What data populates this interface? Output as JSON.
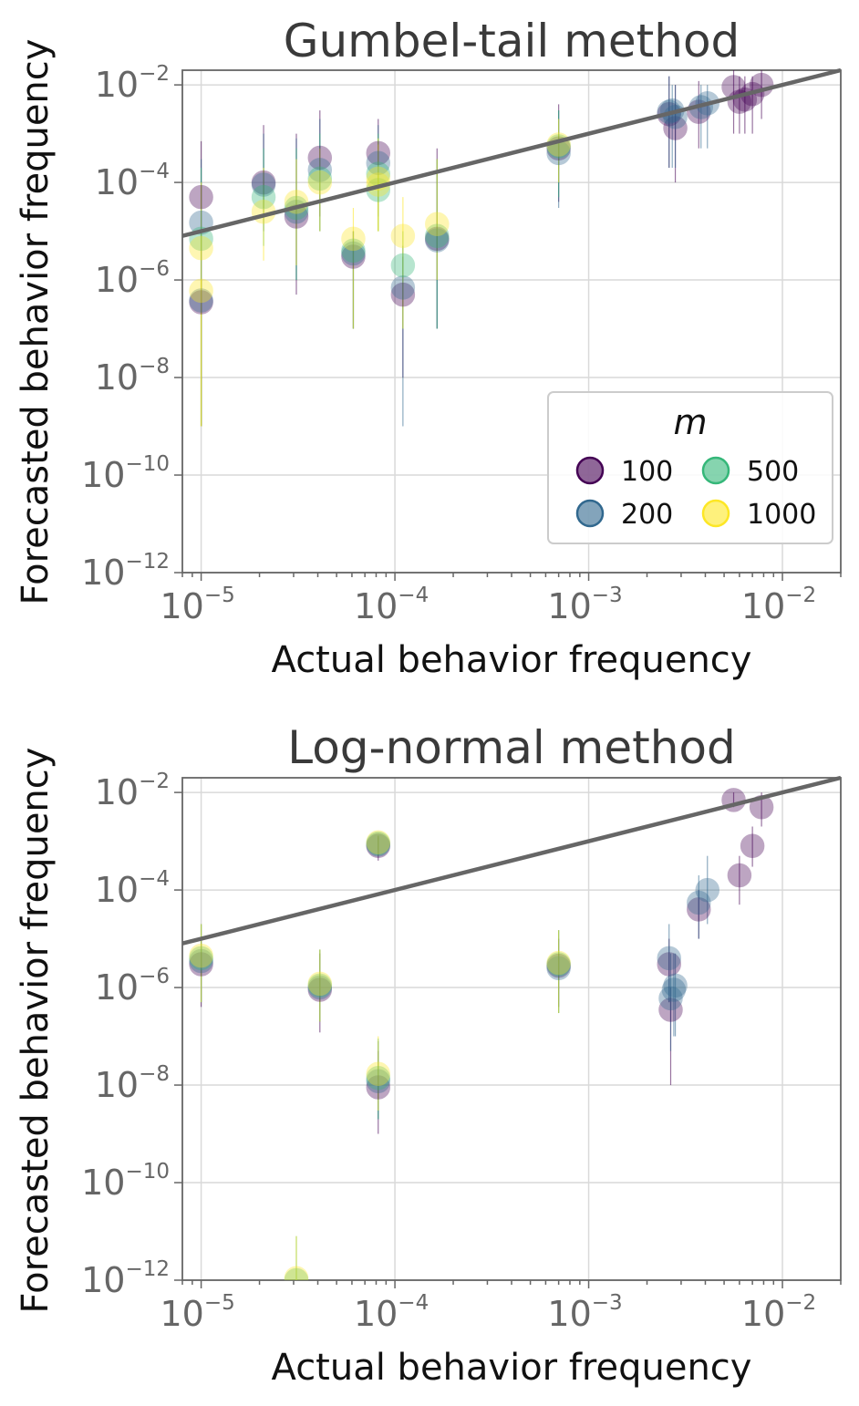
{
  "colors": {
    "m100": "#440154",
    "m200": "#31688e",
    "m500": "#35b779",
    "m1000": "#fde725",
    "reference_line": "#666666",
    "grid": "#d9d9d9"
  },
  "legend": {
    "title": "m",
    "entries": [
      {
        "label": "100",
        "series": "m100"
      },
      {
        "label": "500",
        "series": "m500"
      },
      {
        "label": "200",
        "series": "m200"
      },
      {
        "label": "1000",
        "series": "m1000"
      }
    ]
  },
  "chart_data": [
    {
      "type": "scatter",
      "title": "Gumbel-tail method",
      "xlabel": "Actual behavior frequency",
      "ylabel": "Forecasted behavior frequency",
      "xscale": "log",
      "yscale": "log",
      "xlim": [
        8e-06,
        0.02
      ],
      "ylim": [
        1e-12,
        0.02
      ],
      "x_ticks": [
        {
          "base": "10",
          "exp": "−5",
          "value": -5
        },
        {
          "base": "10",
          "exp": "−4",
          "value": -4
        },
        {
          "base": "10",
          "exp": "−3",
          "value": -3
        },
        {
          "base": "10",
          "exp": "−2",
          "value": -2
        }
      ],
      "y_ticks": [
        {
          "base": "10",
          "exp": "−2",
          "value": -2
        },
        {
          "base": "10",
          "exp": "−4",
          "value": -4
        },
        {
          "base": "10",
          "exp": "−6",
          "value": -6
        },
        {
          "base": "10",
          "exp": "−8",
          "value": -8
        },
        {
          "base": "10",
          "exp": "−10",
          "value": -10
        },
        {
          "base": "10",
          "exp": "−12",
          "value": -12
        }
      ],
      "reference_line": "y = x",
      "legend_location": "lower-right",
      "grid": true,
      "series": [
        {
          "name": "100",
          "points": [
            [
              1e-05,
              5e-05,
              0.0007,
              1e-09
            ],
            [
              1e-05,
              3.5e-07,
              1e-06,
              1e-09
            ],
            [
              2.1e-05,
              0.0001,
              0.0015,
              3e-05
            ],
            [
              3.1e-05,
              2e-05,
              0.001,
              5e-07
            ],
            [
              4.1e-05,
              0.00032,
              0.003,
              2e-05
            ],
            [
              6.1e-05,
              3e-06,
              1e-05,
              1e-07
            ],
            [
              8.2e-05,
              0.0004,
              0.002,
              5e-05
            ],
            [
              0.00011,
              5e-07,
              3e-06,
              1e-08
            ],
            [
              0.000165,
              7e-06,
              0.0005,
              1e-07
            ],
            [
              0.0007,
              0.0005,
              0.004,
              4e-05
            ],
            [
              0.0026,
              0.0025,
              0.015,
              0.0002
            ],
            [
              0.0028,
              0.0013,
              0.01,
              0.0001
            ],
            [
              0.0037,
              0.0028,
              0.012,
              0.0005
            ],
            [
              0.0056,
              0.009,
              0.02,
              0.001
            ],
            [
              0.006,
              0.0045,
              0.015,
              0.001
            ],
            [
              0.0064,
              0.005,
              0.015,
              0.001
            ],
            [
              0.007,
              0.0065,
              0.015,
              0.001
            ],
            [
              0.0078,
              0.01,
              0.02,
              0.002
            ]
          ]
        },
        {
          "name": "200",
          "points": [
            [
              1e-05,
              1.5e-05,
              0.0003,
              1e-09
            ],
            [
              1e-05,
              3.8e-07,
              1e-06,
              1e-09
            ],
            [
              2.1e-05,
              9e-05,
              0.001,
              1e-05
            ],
            [
              3.1e-05,
              2.5e-05,
              0.0008,
              1e-06
            ],
            [
              4.1e-05,
              0.00018,
              0.002,
              1e-05
            ],
            [
              6.1e-05,
              3.5e-06,
              1e-05,
              1e-07
            ],
            [
              8.2e-05,
              0.00025,
              0.0015,
              2e-05
            ],
            [
              0.00011,
              7e-07,
              5e-06,
              1e-09
            ],
            [
              0.000165,
              6.5e-06,
              0.0003,
              1e-07
            ],
            [
              0.0007,
              0.0004,
              0.003,
              3e-05
            ],
            [
              0.0026,
              0.0028,
              0.015,
              0.0002
            ],
            [
              0.0027,
              0.003,
              0.01,
              0.0002
            ],
            [
              0.0028,
              0.0022,
              0.01,
              0.0002
            ],
            [
              0.0038,
              0.0035,
              0.01,
              0.0005
            ],
            [
              0.0041,
              0.0042,
              0.01,
              0.0005
            ]
          ]
        },
        {
          "name": "500",
          "points": [
            [
              1e-05,
              7e-06,
              0.0002,
              1e-09
            ],
            [
              2.1e-05,
              5e-05,
              0.0005,
              5e-06
            ],
            [
              3.1e-05,
              3e-05,
              0.0005,
              1e-06
            ],
            [
              4.1e-05,
              0.00012,
              0.001,
              1e-05
            ],
            [
              6.1e-05,
              4e-06,
              1e-05,
              1e-07
            ],
            [
              8.2e-05,
              0.00015,
              0.001,
              1e-05
            ],
            [
              8.2e-05,
              7e-05,
              0.0008,
              1e-05
            ],
            [
              0.00011,
              2e-06,
              1e-05,
              1e-07
            ],
            [
              0.000165,
              8e-06,
              0.0003,
              1e-07
            ],
            [
              0.0007,
              0.00055,
              0.003,
              5e-05
            ]
          ]
        },
        {
          "name": "1000",
          "points": [
            [
              1e-05,
              4.5e-06,
              0.0001,
              1e-09
            ],
            [
              1e-05,
              6e-07,
              1e-06,
              1e-09
            ],
            [
              2.1e-05,
              2.5e-05,
              0.0002,
              2.5e-06
            ],
            [
              3.1e-05,
              4e-05,
              0.0003,
              2e-06
            ],
            [
              4.1e-05,
              0.0001,
              0.0005,
              1e-05
            ],
            [
              6.1e-05,
              7e-06,
              3e-05,
              1e-07
            ],
            [
              8.2e-05,
              0.00012,
              0.0008,
              1e-05
            ],
            [
              8.2e-05,
              9e-05,
              0.0006,
              1e-05
            ],
            [
              0.00011,
              8e-06,
              5e-05,
              1e-07
            ],
            [
              0.000165,
              1.4e-05,
              0.0003,
              1e-06
            ],
            [
              0.0007,
              0.0006,
              0.002,
              0.0001
            ]
          ]
        }
      ]
    },
    {
      "type": "scatter",
      "title": "Log-normal method",
      "xlabel": "Actual behavior frequency",
      "ylabel": "Forecasted behavior frequency",
      "xscale": "log",
      "yscale": "log",
      "xlim": [
        8e-06,
        0.02
      ],
      "ylim": [
        1e-12,
        0.02
      ],
      "x_ticks": [
        {
          "base": "10",
          "exp": "−5",
          "value": -5
        },
        {
          "base": "10",
          "exp": "−4",
          "value": -4
        },
        {
          "base": "10",
          "exp": "−3",
          "value": -3
        },
        {
          "base": "10",
          "exp": "−2",
          "value": -2
        }
      ],
      "y_ticks": [
        {
          "base": "10",
          "exp": "−2",
          "value": -2
        },
        {
          "base": "10",
          "exp": "−4",
          "value": -4
        },
        {
          "base": "10",
          "exp": "−6",
          "value": -6
        },
        {
          "base": "10",
          "exp": "−8",
          "value": -8
        },
        {
          "base": "10",
          "exp": "−10",
          "value": -10
        },
        {
          "base": "10",
          "exp": "−12",
          "value": -12
        }
      ],
      "reference_line": "y = x",
      "grid": true,
      "series": [
        {
          "name": "100",
          "points": [
            [
              1e-05,
              3e-06,
              1e-05,
              4e-07
            ],
            [
              4.1e-05,
              9e-07,
              5e-06,
              1.2e-07
            ],
            [
              8.2e-05,
              0.0008,
              0.0012,
              0.0004
            ],
            [
              8.2e-05,
              9e-09,
              5e-08,
              1e-09
            ],
            [
              0.0007,
              2.8e-06,
              1e-05,
              4e-07
            ],
            [
              0.0026,
              3e-06,
              1e-05,
              5e-07
            ],
            [
              0.00265,
              3.5e-07,
              1e-06,
              1e-08
            ],
            [
              0.0037,
              4e-05,
              0.0001,
              1e-05
            ],
            [
              0.0056,
              0.007,
              0.01,
              0.005
            ],
            [
              0.006,
              0.0002,
              0.0005,
              5e-05
            ],
            [
              0.007,
              0.0008,
              0.002,
              0.0003
            ],
            [
              0.0078,
              0.005,
              0.01,
              0.002
            ]
          ]
        },
        {
          "name": "200",
          "points": [
            [
              1e-05,
              3.5e-06,
              2e-05,
              5e-07
            ],
            [
              4.1e-05,
              1e-06,
              6e-06,
              2e-07
            ],
            [
              8.2e-05,
              0.00085,
              0.0013,
              0.0005
            ],
            [
              8.2e-05,
              1.2e-08,
              8e-08,
              2e-09
            ],
            [
              0.0007,
              2.5e-06,
              1.5e-05,
              3e-07
            ],
            [
              0.0026,
              4e-06,
              2e-05,
              5e-07
            ],
            [
              0.00265,
              6e-07,
              5e-06,
              5e-08
            ],
            [
              0.00275,
              9e-07,
              5e-06,
              1e-07
            ],
            [
              0.0028,
              1.1e-06,
              5e-06,
              1e-07
            ],
            [
              0.0037,
              5.5e-05,
              0.0002,
              1e-05
            ],
            [
              0.0041,
              0.0001,
              0.0005,
              2e-05
            ]
          ]
        },
        {
          "name": "500",
          "points": [
            [
              1e-05,
              4e-06,
              2e-05,
              5e-07
            ],
            [
              4.1e-05,
              1.1e-06,
              6e-06,
              2e-07
            ],
            [
              8.2e-05,
              0.0009,
              0.0013,
              0.0005
            ],
            [
              8.2e-05,
              1.4e-08,
              9e-08,
              2e-09
            ],
            [
              0.0007,
              3e-06,
              1.5e-05,
              3e-07
            ],
            [
              3.1e-05,
              1e-12,
              8e-12,
              1e-12
            ]
          ]
        },
        {
          "name": "1000",
          "points": [
            [
              1e-05,
              4.5e-06,
              2e-05,
              5e-07
            ],
            [
              4.1e-05,
              1.2e-06,
              6e-06,
              2e-07
            ],
            [
              8.2e-05,
              0.00095,
              0.0013,
              0.0005
            ],
            [
              8.2e-05,
              1.7e-08,
              1e-07,
              3e-09
            ],
            [
              0.0007,
              3.2e-06,
              1.5e-05,
              3e-07
            ],
            [
              3.1e-05,
              1.1e-12,
              8e-12,
              1e-12
            ]
          ]
        }
      ]
    }
  ]
}
